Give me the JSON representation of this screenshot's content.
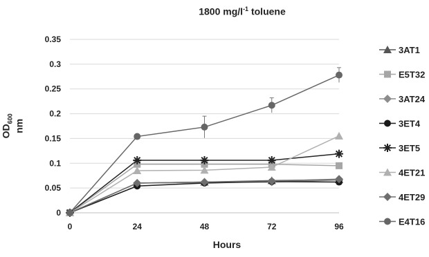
{
  "chart_data": {
    "type": "line",
    "title_main": "1800 mg/l",
    "title_sup": "-1",
    "title_rest": " toluene",
    "ylabel_main": "OD",
    "ylabel_sub": "600",
    "ylabel_rest": " nm",
    "xlabel": "Hours",
    "x": [
      0,
      24,
      48,
      72,
      96
    ],
    "x_tick_labels": [
      "0",
      "24",
      "48",
      "72",
      "96"
    ],
    "ylim": [
      0,
      0.35
    ],
    "y_ticks": [
      0,
      0.05,
      0.1,
      0.15,
      0.2,
      0.25,
      0.3,
      0.35
    ],
    "y_tick_labels": [
      "0",
      "0.05",
      "0.1",
      "0.15",
      "0.2",
      "0.25",
      "0.3",
      "0.35"
    ],
    "grid": "horizontal",
    "legend_position": "right",
    "series": [
      {
        "name": "3AT1",
        "marker": "triangle",
        "color": "#555555",
        "values": [
          0,
          0.06,
          0.062,
          0.065,
          0.067
        ]
      },
      {
        "name": "E5T32",
        "marker": "square",
        "color": "#a6a6a6",
        "values": [
          0,
          0.098,
          0.098,
          0.098,
          0.095
        ]
      },
      {
        "name": "3AT24",
        "marker": "diamond",
        "color": "#8c8c8c",
        "values": [
          0,
          0.06,
          0.061,
          0.062,
          0.066
        ]
      },
      {
        "name": "3ET4",
        "marker": "circle",
        "color": "#1a1a1a",
        "values": [
          0,
          0.054,
          0.06,
          0.063,
          0.062
        ]
      },
      {
        "name": "3ET5",
        "marker": "star",
        "color": "#222222",
        "values": [
          0,
          0.106,
          0.106,
          0.106,
          0.119
        ]
      },
      {
        "name": "4ET21",
        "marker": "triangle",
        "color": "#b0b0b0",
        "values": [
          0,
          0.085,
          0.086,
          0.092,
          0.155
        ]
      },
      {
        "name": "4ET29",
        "marker": "diamond",
        "color": "#6e6e6e",
        "values": [
          0,
          0.06,
          0.062,
          0.064,
          0.068
        ]
      },
      {
        "name": "E4T16",
        "marker": "circle",
        "color": "#666666",
        "values": [
          0,
          0.154,
          0.173,
          0.217,
          0.278
        ],
        "errors": [
          0,
          0,
          0.022,
          0.015,
          0.015
        ]
      }
    ]
  }
}
